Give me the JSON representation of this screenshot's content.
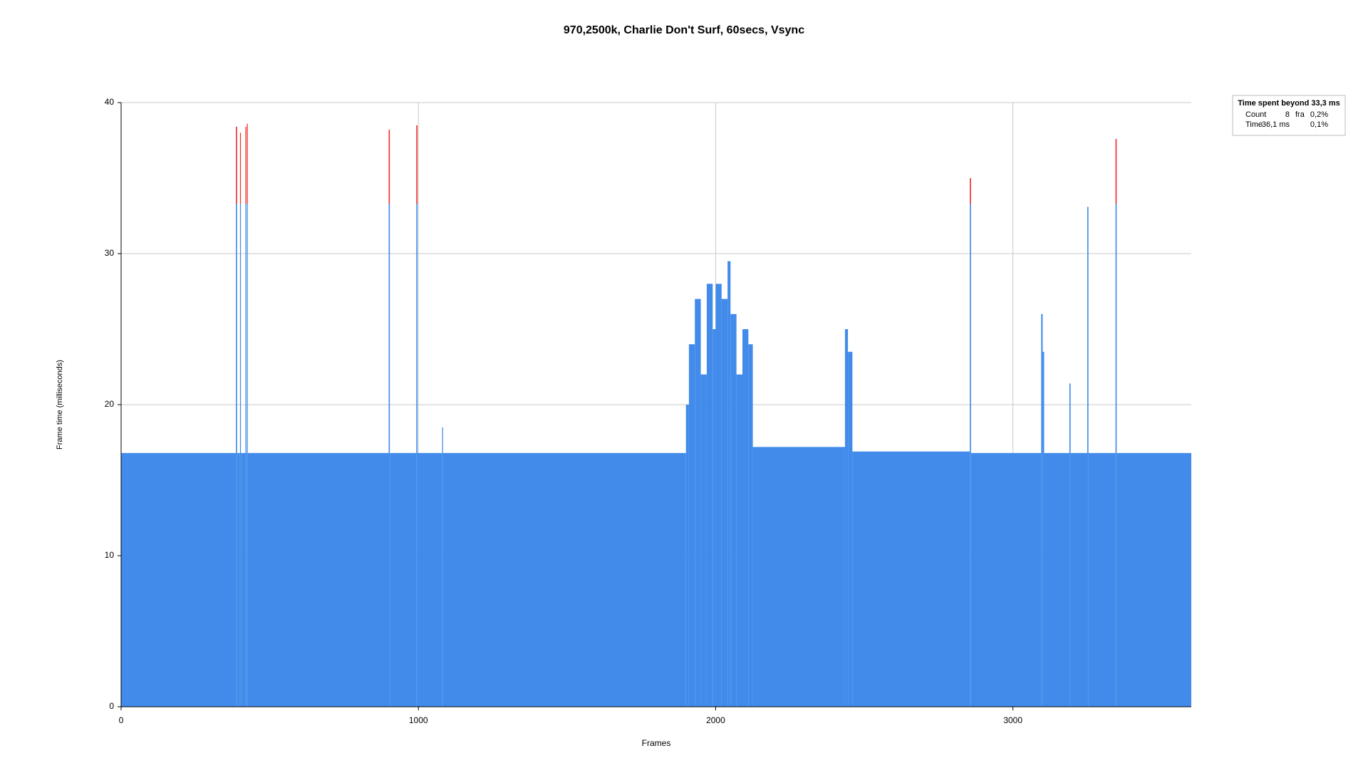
{
  "chart_data": {
    "type": "bar",
    "title": "970,2500k, Charlie Don't Surf, 60secs,  Vsync",
    "x_label": "Frames",
    "y_label": "Frame time (milliseconds)",
    "x": [
      0,
      386,
      390,
      400,
      403,
      418,
      421,
      423,
      426,
      900,
      904,
      993,
      997,
      1080,
      1083,
      1900,
      1910,
      1930,
      1950,
      1970,
      1990,
      2000,
      2020,
      2040,
      2050,
      2070,
      2090,
      2110,
      2125,
      2435,
      2445,
      2460,
      2855,
      2859,
      3095,
      3100,
      3105,
      3190,
      3194,
      3250,
      3254,
      3345,
      3349
    ],
    "values": [
      16.8,
      38.4,
      16.8,
      38.0,
      16.8,
      38.4,
      16.8,
      38.6,
      16.8,
      38.2,
      16.8,
      38.5,
      16.8,
      18.5,
      16.8,
      20,
      24,
      27,
      22,
      28,
      25,
      28,
      27,
      29.5,
      26,
      22,
      25,
      24,
      17.2,
      25,
      23.5,
      16.9,
      35,
      16.8,
      26,
      23.5,
      16.8,
      21.4,
      16.8,
      33.1,
      16.8,
      37.6,
      16.8
    ],
    "color": "#428bea",
    "threshold": 33.3,
    "threshold_color": "#f03030",
    "xlim": [
      0,
      3600
    ],
    "xticks": [
      0,
      1000,
      2000,
      3000
    ],
    "ylim": [
      0,
      40
    ],
    "yticks": [
      0,
      10,
      20,
      30,
      40
    ],
    "grid": true,
    "legend": {
      "title": "Time spent beyond 33,3 ms",
      "rows": [
        [
          "Count",
          "8",
          "fra",
          "0,2%"
        ],
        [
          "Time",
          "36,1 ms",
          "0,1%"
        ]
      ]
    }
  }
}
